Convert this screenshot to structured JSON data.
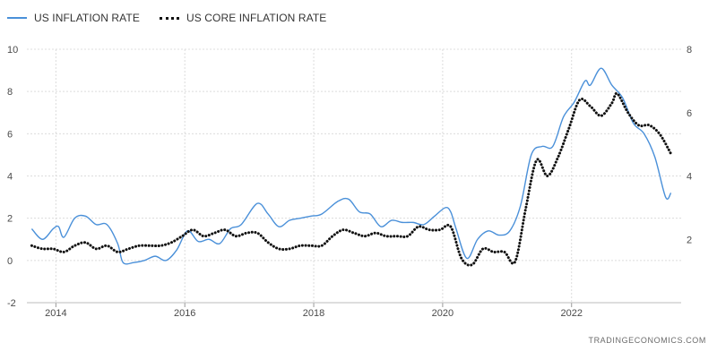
{
  "legend": {
    "series_1": "US INFLATION RATE",
    "series_2": "US CORE INFLATION RATE"
  },
  "watermark": "TRADINGECONOMICS.COM",
  "colors": {
    "series_1": "#4a90d9",
    "series_2": "#111111",
    "grid": "#dcdcdc"
  },
  "chart_data": {
    "type": "line",
    "title": "",
    "xlabel": "",
    "ylabel": "",
    "x_ticks": [
      "2014",
      "2016",
      "2018",
      "2020",
      "2022"
    ],
    "y_left_ticks": [
      "10",
      "8",
      "6",
      "4",
      "2",
      "0",
      "-2"
    ],
    "y_right_ticks": [
      "8",
      "6",
      "4",
      "2"
    ],
    "ylim_left": [
      -2,
      10
    ],
    "ylim_right": [
      0,
      8
    ],
    "grid": true,
    "legend_position": "top-left",
    "series": [
      {
        "name": "US INFLATION RATE",
        "axis": "left",
        "style": "solid",
        "color": "#4a90d9",
        "points": [
          [
            "2013-08",
            1.5
          ],
          [
            "2013-10",
            1.0
          ],
          [
            "2013-12",
            1.5
          ],
          [
            "2014-01",
            1.6
          ],
          [
            "2014-02",
            1.1
          ],
          [
            "2014-04",
            2.0
          ],
          [
            "2014-06",
            2.1
          ],
          [
            "2014-08",
            1.7
          ],
          [
            "2014-10",
            1.7
          ],
          [
            "2014-12",
            0.8
          ],
          [
            "2015-01",
            -0.1
          ],
          [
            "2015-03",
            -0.1
          ],
          [
            "2015-05",
            0.0
          ],
          [
            "2015-07",
            0.2
          ],
          [
            "2015-09",
            0.0
          ],
          [
            "2015-11",
            0.5
          ],
          [
            "2016-01",
            1.4
          ],
          [
            "2016-03",
            0.9
          ],
          [
            "2016-05",
            1.0
          ],
          [
            "2016-07",
            0.8
          ],
          [
            "2016-09",
            1.5
          ],
          [
            "2016-11",
            1.7
          ],
          [
            "2017-02",
            2.7
          ],
          [
            "2017-04",
            2.2
          ],
          [
            "2017-06",
            1.6
          ],
          [
            "2017-08",
            1.9
          ],
          [
            "2017-10",
            2.0
          ],
          [
            "2017-12",
            2.1
          ],
          [
            "2018-02",
            2.2
          ],
          [
            "2018-05",
            2.8
          ],
          [
            "2018-07",
            2.9
          ],
          [
            "2018-09",
            2.3
          ],
          [
            "2018-11",
            2.2
          ],
          [
            "2019-01",
            1.6
          ],
          [
            "2019-03",
            1.9
          ],
          [
            "2019-05",
            1.8
          ],
          [
            "2019-07",
            1.8
          ],
          [
            "2019-09",
            1.7
          ],
          [
            "2019-11",
            2.1
          ],
          [
            "2020-01",
            2.5
          ],
          [
            "2020-02",
            2.3
          ],
          [
            "2020-03",
            1.5
          ],
          [
            "2020-05",
            0.1
          ],
          [
            "2020-07",
            1.0
          ],
          [
            "2020-09",
            1.4
          ],
          [
            "2020-11",
            1.2
          ],
          [
            "2021-01",
            1.4
          ],
          [
            "2021-03",
            2.6
          ],
          [
            "2021-05",
            5.0
          ],
          [
            "2021-07",
            5.4
          ],
          [
            "2021-09",
            5.4
          ],
          [
            "2021-11",
            6.8
          ],
          [
            "2022-01",
            7.5
          ],
          [
            "2022-03",
            8.5
          ],
          [
            "2022-04",
            8.3
          ],
          [
            "2022-06",
            9.1
          ],
          [
            "2022-08",
            8.3
          ],
          [
            "2022-10",
            7.7
          ],
          [
            "2022-12",
            6.5
          ],
          [
            "2023-02",
            6.0
          ],
          [
            "2023-04",
            4.9
          ],
          [
            "2023-06",
            3.0
          ],
          [
            "2023-07",
            3.2
          ]
        ]
      },
      {
        "name": "US CORE INFLATION RATE",
        "axis": "right",
        "style": "dotted",
        "color": "#111111",
        "points": [
          [
            "2013-08",
            1.8
          ],
          [
            "2013-10",
            1.7
          ],
          [
            "2013-12",
            1.7
          ],
          [
            "2014-02",
            1.6
          ],
          [
            "2014-04",
            1.8
          ],
          [
            "2014-06",
            1.9
          ],
          [
            "2014-08",
            1.7
          ],
          [
            "2014-10",
            1.8
          ],
          [
            "2014-12",
            1.6
          ],
          [
            "2015-02",
            1.7
          ],
          [
            "2015-04",
            1.8
          ],
          [
            "2015-06",
            1.8
          ],
          [
            "2015-08",
            1.8
          ],
          [
            "2015-10",
            1.9
          ],
          [
            "2015-12",
            2.1
          ],
          [
            "2016-02",
            2.3
          ],
          [
            "2016-04",
            2.1
          ],
          [
            "2016-06",
            2.2
          ],
          [
            "2016-08",
            2.3
          ],
          [
            "2016-10",
            2.1
          ],
          [
            "2016-12",
            2.2
          ],
          [
            "2017-02",
            2.2
          ],
          [
            "2017-04",
            1.9
          ],
          [
            "2017-06",
            1.7
          ],
          [
            "2017-08",
            1.7
          ],
          [
            "2017-10",
            1.8
          ],
          [
            "2017-12",
            1.8
          ],
          [
            "2018-02",
            1.8
          ],
          [
            "2018-04",
            2.1
          ],
          [
            "2018-06",
            2.3
          ],
          [
            "2018-08",
            2.2
          ],
          [
            "2018-10",
            2.1
          ],
          [
            "2018-12",
            2.2
          ],
          [
            "2019-02",
            2.1
          ],
          [
            "2019-04",
            2.1
          ],
          [
            "2019-06",
            2.1
          ],
          [
            "2019-08",
            2.4
          ],
          [
            "2019-10",
            2.3
          ],
          [
            "2019-12",
            2.3
          ],
          [
            "2020-02",
            2.4
          ],
          [
            "2020-04",
            1.4
          ],
          [
            "2020-06",
            1.2
          ],
          [
            "2020-08",
            1.7
          ],
          [
            "2020-10",
            1.6
          ],
          [
            "2020-12",
            1.6
          ],
          [
            "2021-02",
            1.3
          ],
          [
            "2021-04",
            3.0
          ],
          [
            "2021-06",
            4.5
          ],
          [
            "2021-08",
            4.0
          ],
          [
            "2021-10",
            4.6
          ],
          [
            "2021-12",
            5.5
          ],
          [
            "2022-02",
            6.4
          ],
          [
            "2022-04",
            6.2
          ],
          [
            "2022-06",
            5.9
          ],
          [
            "2022-08",
            6.3
          ],
          [
            "2022-09",
            6.6
          ],
          [
            "2022-11",
            6.0
          ],
          [
            "2023-01",
            5.6
          ],
          [
            "2023-03",
            5.6
          ],
          [
            "2023-05",
            5.3
          ],
          [
            "2023-07",
            4.7
          ]
        ]
      }
    ]
  }
}
